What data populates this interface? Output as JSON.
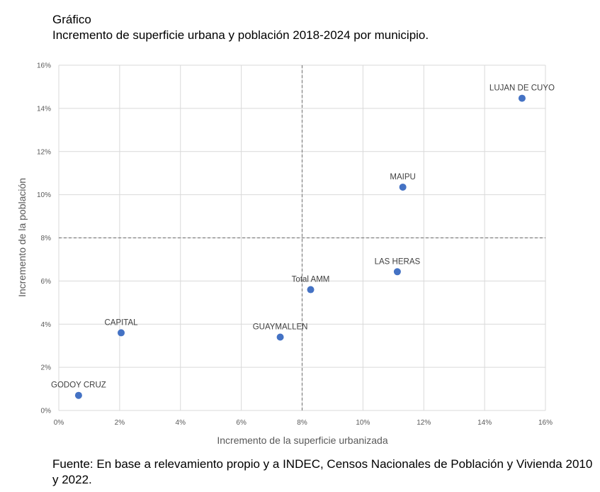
{
  "header": {
    "label": "Gráfico",
    "title": "Incremento de superficie urbana y población 2018-2024 por municipio."
  },
  "footer": {
    "source": "Fuente: En base a relevamiento propio y a INDEC, Censos Nacionales de Población y Vivienda 2010 y 2022."
  },
  "chart_data": {
    "type": "scatter",
    "title": "Incremento de superficie urbana y población 2018-2024 por municipio.",
    "xlabel": "Incremento de la superficie urbanizada",
    "ylabel": "Incremento de la población",
    "xlim": [
      0,
      0.16
    ],
    "ylim": [
      0,
      0.16
    ],
    "xticks": [
      0,
      0.02,
      0.04,
      0.06,
      0.08,
      0.1,
      0.12,
      0.14,
      0.16
    ],
    "yticks": [
      0,
      0.02,
      0.04,
      0.06,
      0.08,
      0.1,
      0.12,
      0.14,
      0.16
    ],
    "xtick_labels": [
      "0%",
      "2%",
      "4%",
      "6%",
      "8%",
      "10%",
      "12%",
      "14%",
      "16%"
    ],
    "ytick_labels": [
      "0%",
      "2%",
      "4%",
      "6%",
      "8%",
      "10%",
      "12%",
      "14%",
      "16%"
    ],
    "grid": true,
    "reference_lines": {
      "x": 0.08,
      "y": 0.08
    },
    "point_color": "#4472C4",
    "points": [
      {
        "label": "GODOY CRUZ",
        "x": 0.0065,
        "y": 0.007
      },
      {
        "label": "CAPITAL",
        "x": 0.0205,
        "y": 0.036
      },
      {
        "label": "GUAYMALLEN",
        "x": 0.0728,
        "y": 0.034
      },
      {
        "label": "Total AMM",
        "x": 0.0828,
        "y": 0.056
      },
      {
        "label": "LAS HERAS",
        "x": 0.1113,
        "y": 0.0643
      },
      {
        "label": "MAIPU",
        "x": 0.1131,
        "y": 0.1035
      },
      {
        "label": "LUJAN DE CUYO",
        "x": 0.1523,
        "y": 0.1447
      }
    ]
  }
}
